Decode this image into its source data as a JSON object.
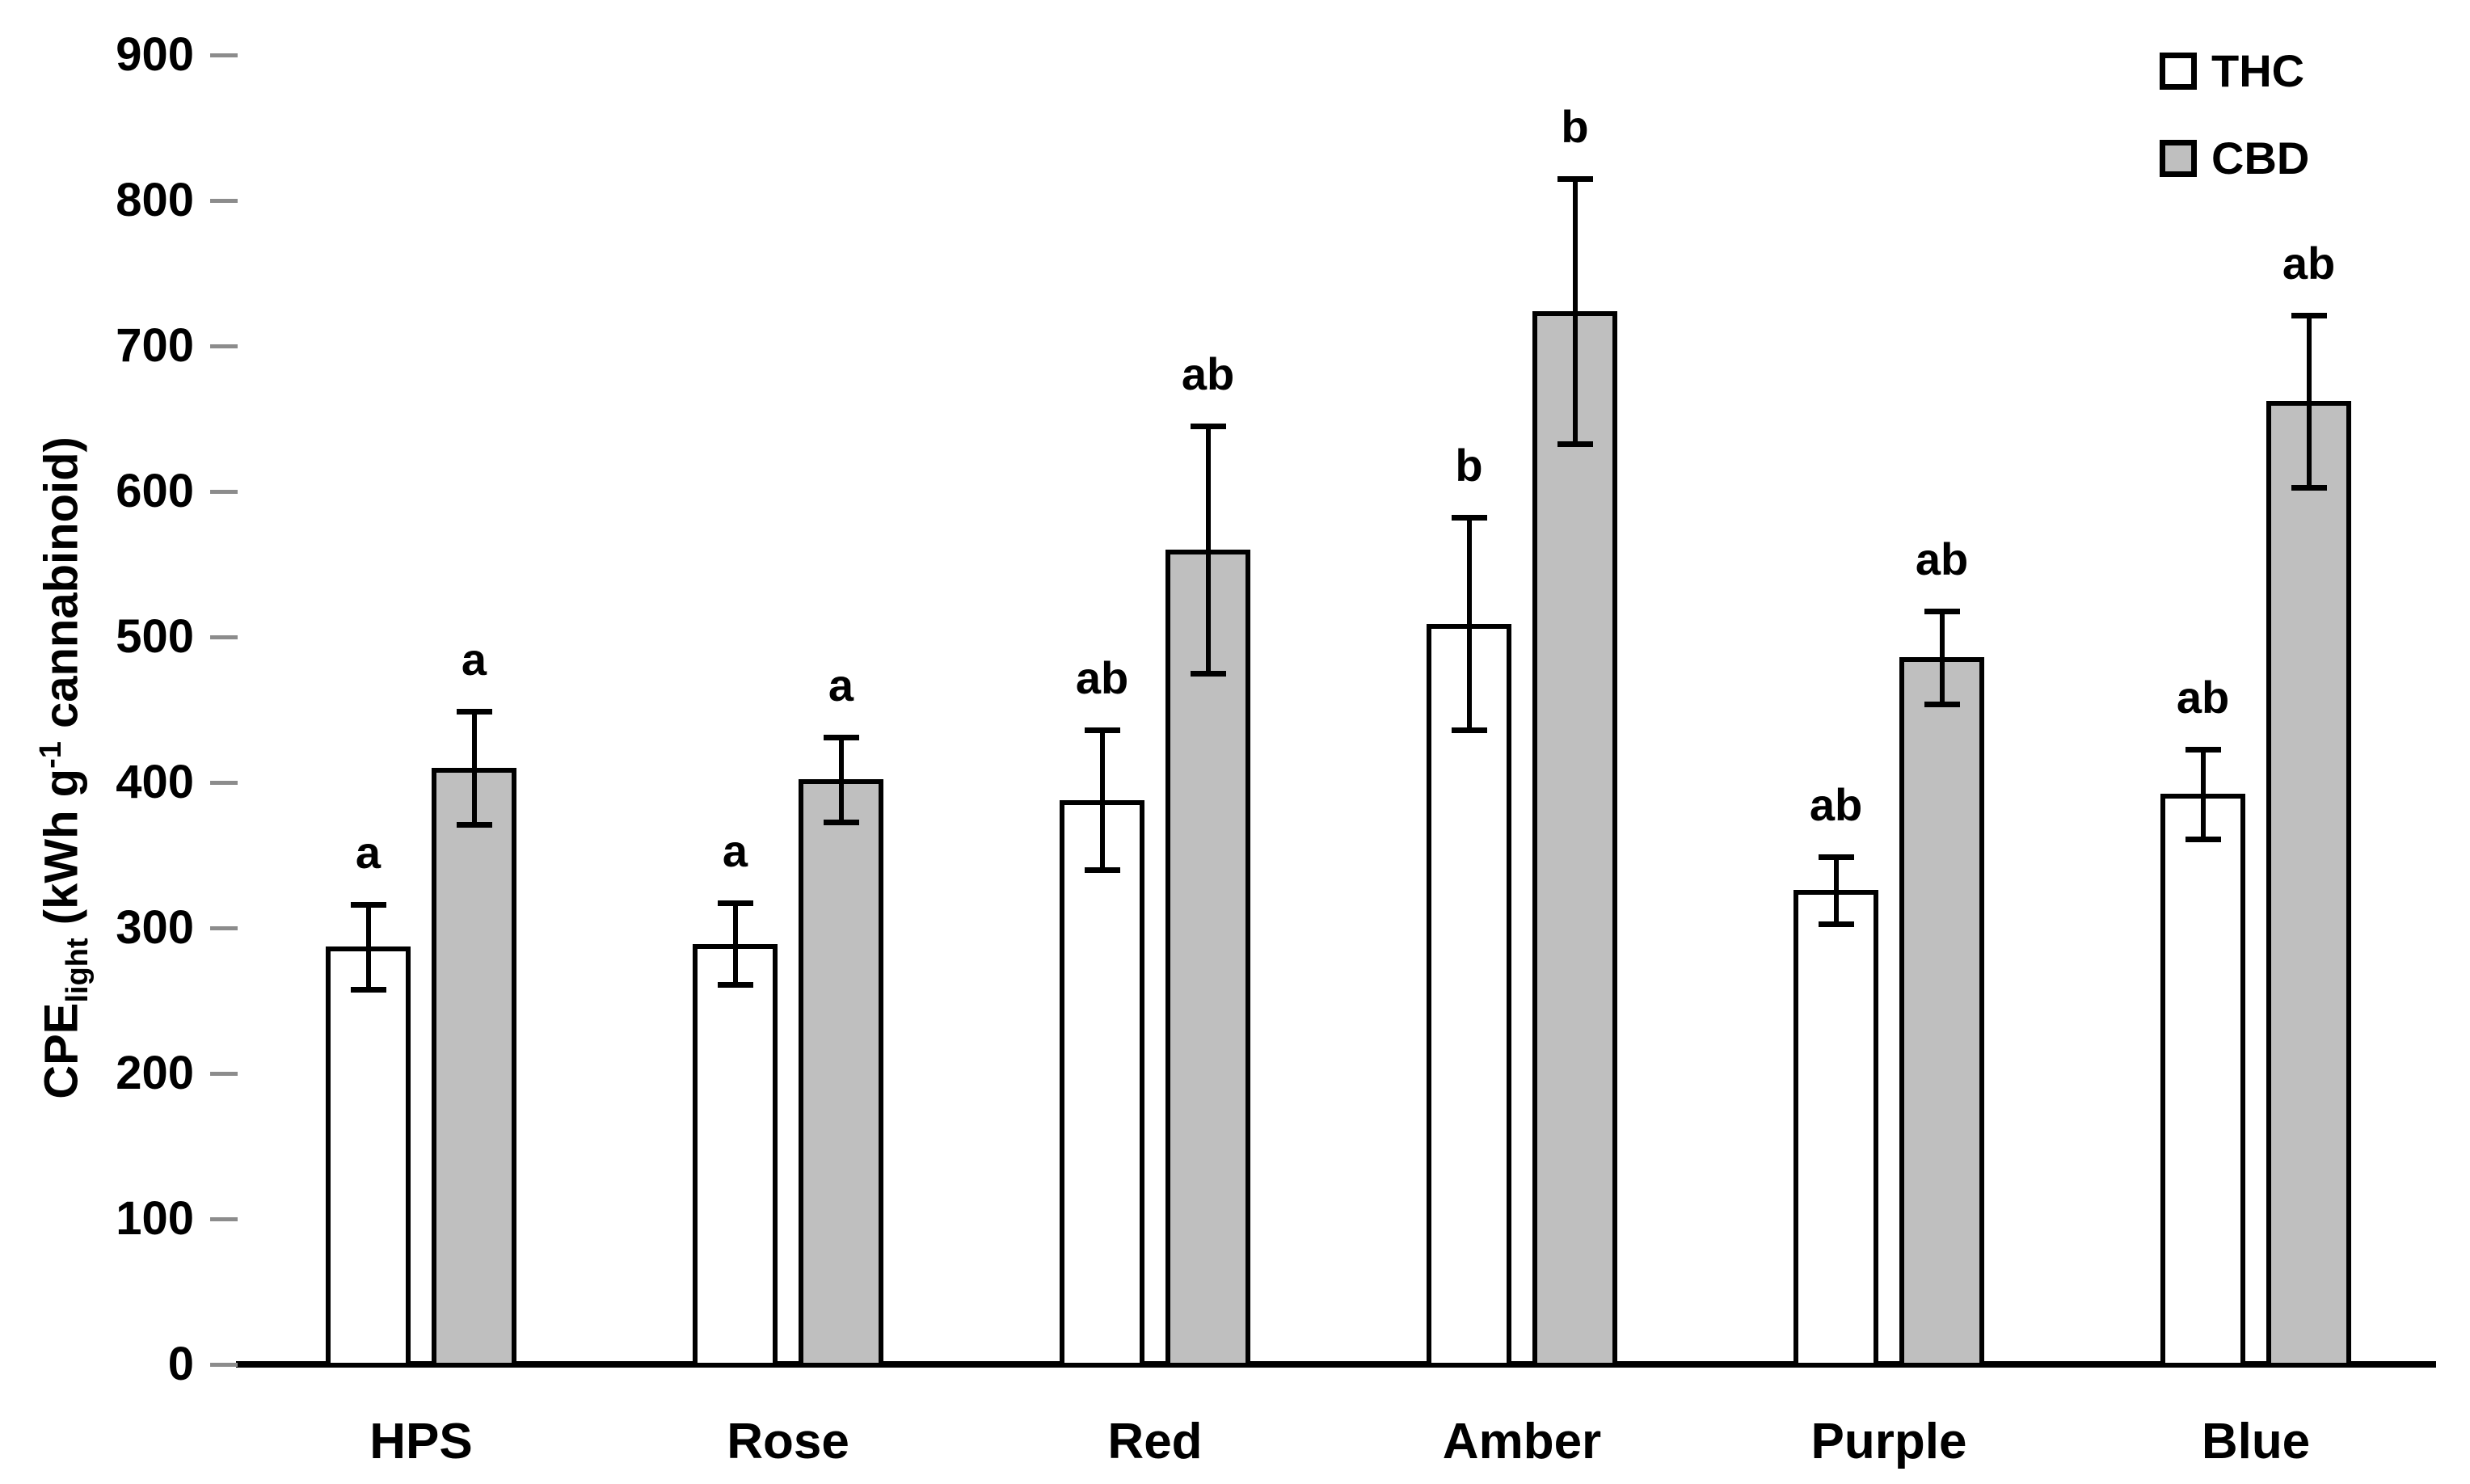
{
  "chart_data": {
    "type": "bar",
    "title": "",
    "categories": [
      "HPS",
      "Rose",
      "Red",
      "Amber",
      "Purple",
      "Blue"
    ],
    "series": [
      {
        "name": "THC",
        "fill": "#ffffff",
        "values": [
          287,
          289,
          388,
          509,
          326,
          392
        ],
        "errors": [
          29,
          28,
          48,
          73,
          23,
          31
        ],
        "letters": [
          "a",
          "a",
          "ab",
          "b",
          "ab",
          "ab"
        ]
      },
      {
        "name": "CBD",
        "fill": "#bfbfbf",
        "values": [
          410,
          402,
          560,
          724,
          486,
          662
        ],
        "errors": [
          39,
          29,
          85,
          91,
          32,
          59
        ],
        "letters": [
          "a",
          "a",
          "ab",
          "b",
          "ab",
          "ab"
        ]
      }
    ],
    "ylabel_parts": {
      "base": "CPE",
      "sub": "light",
      "mid": " (kWh g",
      "sup": "-1",
      "tail": " cannabinoid)"
    },
    "yticks": [
      "0",
      "100",
      "200",
      "300",
      "400",
      "500",
      "600",
      "700",
      "800",
      "900"
    ],
    "ylim": [
      0,
      900
    ],
    "grid": "off",
    "legend_position": "top-right",
    "colors": {
      "ink": "#000000",
      "tick": "#8c8c8c",
      "thc_fill": "#ffffff",
      "cbd_fill": "#bfbfbf"
    }
  }
}
